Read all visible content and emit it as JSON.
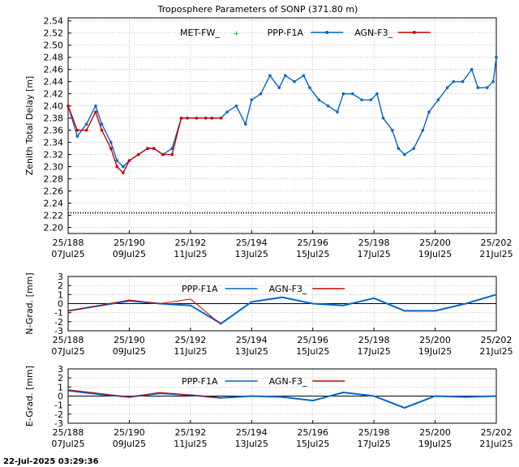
{
  "title": "Troposphere Parameters of SONP (371.80 m)",
  "footer_timestamp": "22-Jul-2025 03:29:36",
  "x_ticks": [
    {
      "day": 188,
      "top": "25/188",
      "bottom": "07Jul25"
    },
    {
      "day": 190,
      "top": "25/190",
      "bottom": "09Jul25"
    },
    {
      "day": 192,
      "top": "25/192",
      "bottom": "11Jul25"
    },
    {
      "day": 194,
      "top": "25/194",
      "bottom": "13Jul25"
    },
    {
      "day": 196,
      "top": "25/196",
      "bottom": "15Jul25"
    },
    {
      "day": 198,
      "top": "25/198",
      "bottom": "17Jul25"
    },
    {
      "day": 200,
      "top": "25/200",
      "bottom": "19Jul25"
    },
    {
      "day": 202,
      "top": "25/202",
      "bottom": "21Jul25"
    }
  ],
  "colors": {
    "met": "#00aa00",
    "ppp": "#0066cc",
    "agn": "#cc0000",
    "grid": "#999999"
  },
  "chart_data": [
    {
      "id": "ztd",
      "type": "scatter",
      "title": "Troposphere Parameters of SONP (371.80 m)",
      "ylabel": "Zenith Total Delay [m]",
      "xlim": [
        188,
        202
      ],
      "ylim": [
        2.19,
        2.545
      ],
      "y_ticks": [
        "2.20",
        "2.22",
        "2.24",
        "2.26",
        "2.28",
        "2.30",
        "2.32",
        "2.34",
        "2.36",
        "2.38",
        "2.40",
        "2.42",
        "2.44",
        "2.46",
        "2.48",
        "2.50",
        "2.52",
        "2.54"
      ],
      "legend": [
        "MET-FW_",
        "PPP-F1A",
        "AGN-F3_"
      ],
      "met_level": 2.224,
      "series": [
        {
          "name": "PPP-F1A",
          "x": [
            188.0,
            188.3,
            188.6,
            188.9,
            189.1,
            189.4,
            189.6,
            189.8,
            190.0,
            190.3,
            190.6,
            190.8,
            191.1,
            191.4,
            191.7,
            191.9,
            192.2,
            192.5,
            192.7,
            193.0,
            193.2,
            193.5,
            193.8,
            194.0,
            194.3,
            194.6,
            194.9,
            195.1,
            195.4,
            195.7,
            195.9,
            196.2,
            196.5,
            196.8,
            197.0,
            197.3,
            197.6,
            197.9,
            198.1,
            198.3,
            198.6,
            198.8,
            199.0,
            199.3,
            199.6,
            199.8,
            200.1,
            200.4,
            200.6,
            200.9,
            201.2,
            201.4,
            201.7,
            201.9,
            202.0
          ],
          "y": [
            2.4,
            2.35,
            2.37,
            2.4,
            2.37,
            2.34,
            2.31,
            2.3,
            2.31,
            2.32,
            2.33,
            2.33,
            2.32,
            2.33,
            2.38,
            2.38,
            2.38,
            2.38,
            2.38,
            2.38,
            2.39,
            2.4,
            2.37,
            2.41,
            2.42,
            2.45,
            2.43,
            2.45,
            2.44,
            2.45,
            2.43,
            2.41,
            2.4,
            2.39,
            2.42,
            2.42,
            2.41,
            2.41,
            2.42,
            2.38,
            2.36,
            2.33,
            2.32,
            2.33,
            2.36,
            2.39,
            2.41,
            2.43,
            2.44,
            2.44,
            2.46,
            2.43,
            2.43,
            2.44,
            2.48
          ]
        },
        {
          "name": "AGN-F3_",
          "x": [
            188.0,
            188.3,
            188.6,
            188.9,
            189.1,
            189.4,
            189.6,
            189.8,
            190.0,
            190.3,
            190.6,
            190.8,
            191.1,
            191.4,
            191.7,
            191.9,
            192.2,
            192.5,
            192.7,
            193.0
          ],
          "y": [
            2.4,
            2.36,
            2.36,
            2.39,
            2.36,
            2.33,
            2.3,
            2.29,
            2.31,
            2.32,
            2.33,
            2.33,
            2.32,
            2.32,
            2.38,
            2.38,
            2.38,
            2.38,
            2.38,
            2.38
          ]
        }
      ]
    },
    {
      "id": "ngrad",
      "type": "line",
      "ylabel": "N-Grad. [mm]",
      "xlim": [
        188,
        202
      ],
      "ylim": [
        -3,
        3
      ],
      "y_ticks": [
        "-3",
        "-2",
        "-1",
        "0",
        "1",
        "2",
        "3"
      ],
      "legend": [
        "PPP-F1A",
        "AGN-F3_"
      ],
      "series": [
        {
          "name": "PPP-F1A",
          "x": [
            188,
            190,
            191,
            192,
            193,
            194,
            195,
            196,
            197,
            198,
            199,
            200,
            201,
            202
          ],
          "y": [
            -0.8,
            0.3,
            0.0,
            -0.2,
            -2.2,
            0.2,
            0.7,
            0.0,
            -0.2,
            0.6,
            -0.8,
            -0.8,
            0.0,
            1.0
          ]
        },
        {
          "name": "AGN-F3_",
          "x": [
            188,
            190,
            191,
            192,
            193
          ],
          "y": [
            -0.8,
            0.4,
            0.0,
            0.5,
            -2.3
          ]
        }
      ]
    },
    {
      "id": "egrad",
      "type": "line",
      "ylabel": "E-Grad. [mm]",
      "xlim": [
        188,
        202
      ],
      "ylim": [
        -3,
        3
      ],
      "y_ticks": [
        "-3",
        "-2",
        "-1",
        "0",
        "1",
        "2",
        "3"
      ],
      "legend": [
        "PPP-F1A",
        "AGN-F3_"
      ],
      "series": [
        {
          "name": "PPP-F1A",
          "x": [
            188,
            189,
            190,
            191,
            192,
            193,
            194,
            195,
            196,
            197,
            198,
            199,
            200,
            201,
            202
          ],
          "y": [
            0.6,
            0.2,
            -0.1,
            0.3,
            0.1,
            -0.2,
            0.0,
            -0.1,
            -0.5,
            0.4,
            0.0,
            -1.3,
            0.0,
            -0.1,
            0.0
          ]
        },
        {
          "name": "AGN-F3_",
          "x": [
            188,
            189,
            190,
            191,
            192,
            193
          ],
          "y": [
            0.7,
            0.3,
            -0.1,
            0.4,
            0.1,
            -0.2
          ]
        }
      ]
    }
  ]
}
